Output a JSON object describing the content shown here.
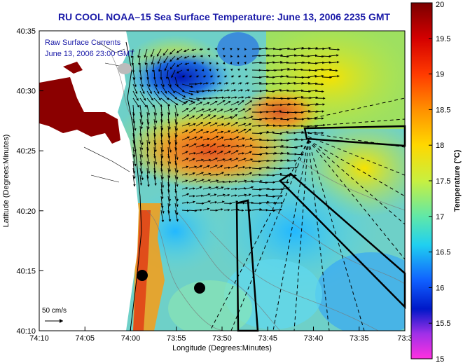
{
  "title": "RU COOL  NOAA–15  Sea Surface Temperature:  June 13, 2006 2235 GMT",
  "legend": {
    "line1": "Raw Surface Currents",
    "line2": "June 13, 2006 23:00 GMT"
  },
  "scale_label": "50 cm/s",
  "axes": {
    "xlabel": "Longitude (Degrees:Minutes)",
    "ylabel": "Latitude (Degrees:Minutes)",
    "x_ticks": [
      "74:10",
      "74:05",
      "74:00",
      "73:55",
      "73:50",
      "73:45",
      "73:40",
      "73:35",
      "73:3"
    ],
    "y_ticks": [
      "40:35",
      "40:30",
      "40:25",
      "40:20",
      "40:15",
      "40:10"
    ]
  },
  "colorbar": {
    "label": "Temperature (°C)",
    "ticks": [
      "20",
      "19.5",
      "19",
      "18.5",
      "18",
      "17.5",
      "17",
      "16.5",
      "16",
      "15.5",
      "15"
    ],
    "min": 15,
    "max": 20
  },
  "colors": {
    "title": "#1a1aa8",
    "land_mask": "#8b0000"
  }
}
